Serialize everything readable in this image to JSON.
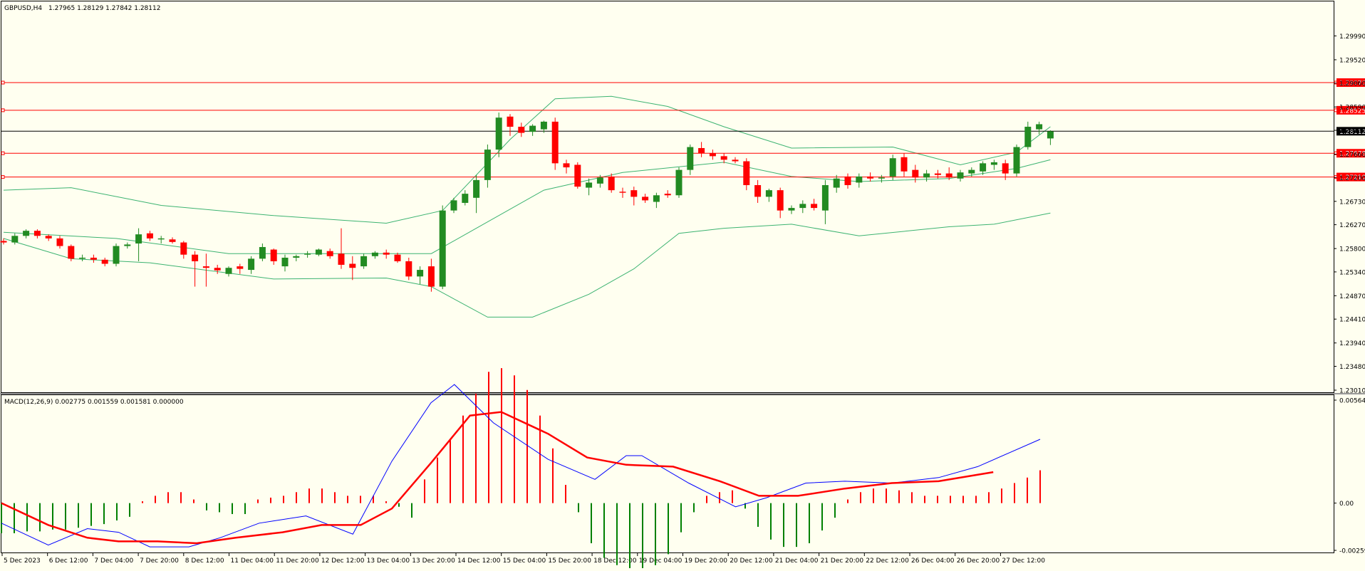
{
  "header": {
    "symbol_label": "GBPUSD,H4",
    "ohlc_values": "1.27965 1.28129 1.27842 1.28112"
  },
  "macd_header": {
    "label": "MACD(12,26,9) 0.002775 0.001559 0.001581 0.000000"
  },
  "colors": {
    "background": "#fffff0",
    "bull_candle": "#228b22",
    "bear_candle": "#ff0000",
    "bollinger": "#3cb371",
    "hline": "#ff0000",
    "bid_line": "#000000",
    "macd_line": "#0000ff",
    "signal_line": "#ff0000",
    "hist_positive": "#ff0000",
    "hist_negative": "#008000"
  },
  "chart_data": [
    {
      "type": "candlestick",
      "symbol": "GBPUSD",
      "timeframe": "H4",
      "ylim": [
        1.2301,
        1.30445
      ],
      "y_ticks": [
        "1.29990",
        "1.29520",
        "1.29060",
        "1.28590",
        "1.28130",
        "1.27660",
        "1.27200",
        "1.26730",
        "1.26270",
        "1.25800",
        "1.25340",
        "1.24870",
        "1.24410",
        "1.23940",
        "1.23480",
        "1.23010"
      ],
      "x_ticks": [
        "5 Dec 2023",
        "6 Dec 12:00",
        "7 Dec 04:00",
        "7 Dec 20:00",
        "8 Dec 12:00",
        "11 Dec 04:00",
        "11 Dec 20:00",
        "12 Dec 12:00",
        "13 Dec 04:00",
        "13 Dec 20:00",
        "14 Dec 12:00",
        "15 Dec 04:00",
        "15 Dec 20:00",
        "18 Dec 12:00",
        "19 Dec 04:00",
        "19 Dec 20:00",
        "20 Dec 12:00",
        "21 Dec 04:00",
        "21 Dec 20:00",
        "22 Dec 12:00",
        "26 Dec 04:00",
        "26 Dec 20:00",
        "27 Dec 12:00"
      ],
      "ohlc": [
        [
          1.2595,
          1.26,
          1.2588,
          1.2592
        ],
        [
          1.2592,
          1.261,
          1.2588,
          1.2605
        ],
        [
          1.2605,
          1.2618,
          1.26,
          1.2615
        ],
        [
          1.2615,
          1.2618,
          1.26,
          1.2605
        ],
        [
          1.2605,
          1.2608,
          1.2595,
          1.26
        ],
        [
          1.26,
          1.2605,
          1.258,
          1.2585
        ],
        [
          1.2585,
          1.2588,
          1.2555,
          1.256
        ],
        [
          1.256,
          1.2568,
          1.2555,
          1.2562
        ],
        [
          1.2562,
          1.2568,
          1.2552,
          1.2558
        ],
        [
          1.2558,
          1.2562,
          1.2545,
          1.255
        ],
        [
          1.255,
          1.259,
          1.2545,
          1.2585
        ],
        [
          1.2585,
          1.2592,
          1.258,
          1.2588
        ],
        [
          1.259,
          1.262,
          1.2555,
          1.2608
        ],
        [
          1.261,
          1.2615,
          1.2595,
          1.26
        ],
        [
          1.2598,
          1.2605,
          1.259,
          1.26
        ],
        [
          1.2598,
          1.2602,
          1.259,
          1.2593
        ],
        [
          1.2592,
          1.2595,
          1.256,
          1.2568
        ],
        [
          1.2568,
          1.2575,
          1.2505,
          1.2555
        ],
        [
          1.2545,
          1.257,
          1.2505,
          1.2542
        ],
        [
          1.2542,
          1.2548,
          1.253,
          1.2537
        ],
        [
          1.253,
          1.2545,
          1.2525,
          1.2542
        ],
        [
          1.2545,
          1.255,
          1.253,
          1.254
        ],
        [
          1.2538,
          1.2565,
          1.253,
          1.256
        ],
        [
          1.256,
          1.259,
          1.2555,
          1.2583
        ],
        [
          1.2578,
          1.258,
          1.2548,
          1.2555
        ],
        [
          1.2545,
          1.2568,
          1.2535,
          1.2562
        ],
        [
          1.2562,
          1.2568,
          1.2555,
          1.2565
        ],
        [
          1.2568,
          1.2575,
          1.2562,
          1.257
        ],
        [
          1.2568,
          1.258,
          1.2565,
          1.2578
        ],
        [
          1.2575,
          1.258,
          1.256,
          1.2565
        ],
        [
          1.257,
          1.262,
          1.254,
          1.2548
        ],
        [
          1.255,
          1.2565,
          1.2518,
          1.2542
        ],
        [
          1.2545,
          1.257,
          1.254,
          1.2565
        ],
        [
          1.2565,
          1.2575,
          1.256,
          1.2572
        ],
        [
          1.2572,
          1.2578,
          1.256,
          1.2568
        ],
        [
          1.2568,
          1.2572,
          1.2552,
          1.2555
        ],
        [
          1.2555,
          1.2562,
          1.2518,
          1.2525
        ],
        [
          1.2525,
          1.2545,
          1.251,
          1.2538
        ],
        [
          1.2545,
          1.256,
          1.2495,
          1.2505
        ],
        [
          1.2505,
          1.2665,
          1.25,
          1.2655
        ],
        [
          1.2655,
          1.268,
          1.265,
          1.2675
        ],
        [
          1.267,
          1.2695,
          1.2665,
          1.2688
        ],
        [
          1.268,
          1.2725,
          1.265,
          1.2715
        ],
        [
          1.2715,
          1.2785,
          1.27,
          1.2775
        ],
        [
          1.2775,
          1.2848,
          1.276,
          1.2838
        ],
        [
          1.284,
          1.2845,
          1.2802,
          1.282
        ],
        [
          1.282,
          1.2828,
          1.28,
          1.2808
        ],
        [
          1.281,
          1.2825,
          1.2802,
          1.2822
        ],
        [
          1.2815,
          1.2832,
          1.2808,
          1.283
        ],
        [
          1.283,
          1.2838,
          1.2735,
          1.2748
        ],
        [
          1.2748,
          1.2755,
          1.2728,
          1.274
        ],
        [
          1.2745,
          1.275,
          1.2698,
          1.2702
        ],
        [
          1.27,
          1.2718,
          1.2685,
          1.271
        ],
        [
          1.2708,
          1.2725,
          1.27,
          1.272
        ],
        [
          1.2722,
          1.2728,
          1.269,
          1.2695
        ],
        [
          1.2692,
          1.27,
          1.268,
          1.269
        ],
        [
          1.2695,
          1.2702,
          1.2665,
          1.2682
        ],
        [
          1.2682,
          1.2688,
          1.267,
          1.2675
        ],
        [
          1.2672,
          1.269,
          1.266,
          1.2685
        ],
        [
          1.2688,
          1.2695,
          1.268,
          1.2685
        ],
        [
          1.2685,
          1.274,
          1.268,
          1.2735
        ],
        [
          1.2735,
          1.2785,
          1.2725,
          1.278
        ],
        [
          1.2778,
          1.279,
          1.276,
          1.2768
        ],
        [
          1.2768,
          1.2775,
          1.2755,
          1.2762
        ],
        [
          1.2762,
          1.2768,
          1.2748,
          1.2755
        ],
        [
          1.2755,
          1.276,
          1.2748,
          1.2752
        ],
        [
          1.2752,
          1.2758,
          1.2695,
          1.2705
        ],
        [
          1.2705,
          1.2715,
          1.267,
          1.2682
        ],
        [
          1.2682,
          1.2698,
          1.2672,
          1.2695
        ],
        [
          1.2695,
          1.27,
          1.264,
          1.2655
        ],
        [
          1.2655,
          1.2665,
          1.2648,
          1.266
        ],
        [
          1.266,
          1.2675,
          1.265,
          1.2668
        ],
        [
          1.2668,
          1.2678,
          1.2655,
          1.266
        ],
        [
          1.2655,
          1.2715,
          1.2628,
          1.2705
        ],
        [
          1.27,
          1.2725,
          1.269,
          1.2718
        ],
        [
          1.2722,
          1.2728,
          1.2698,
          1.2705
        ],
        [
          1.271,
          1.2728,
          1.27,
          1.2722
        ],
        [
          1.2722,
          1.273,
          1.2712,
          1.2718
        ],
        [
          1.2718,
          1.2725,
          1.271,
          1.272
        ],
        [
          1.2722,
          1.2765,
          1.2715,
          1.2758
        ],
        [
          1.276,
          1.2768,
          1.2722,
          1.2732
        ],
        [
          1.2735,
          1.2745,
          1.271,
          1.272
        ],
        [
          1.272,
          1.2735,
          1.2712,
          1.2728
        ],
        [
          1.2728,
          1.2735,
          1.2718,
          1.2725
        ],
        [
          1.2728,
          1.274,
          1.2715,
          1.272
        ],
        [
          1.2718,
          1.2735,
          1.2712,
          1.273
        ],
        [
          1.2728,
          1.274,
          1.2722,
          1.2735
        ],
        [
          1.2732,
          1.2752,
          1.2725,
          1.2748
        ],
        [
          1.2745,
          1.2755,
          1.2735,
          1.275
        ],
        [
          1.2748,
          1.2755,
          1.2715,
          1.2728
        ],
        [
          1.2728,
          1.2785,
          1.2722,
          1.278
        ],
        [
          1.278,
          1.283,
          1.2775,
          1.282
        ],
        [
          1.2815,
          1.283,
          1.2805,
          1.2825
        ],
        [
          1.2797,
          1.2813,
          1.2784,
          1.2811
        ]
      ],
      "bb_upper": [
        [
          0,
          1.2695
        ],
        [
          6,
          1.27
        ],
        [
          14,
          1.2665
        ],
        [
          24,
          1.2645
        ],
        [
          34,
          1.263
        ],
        [
          39,
          1.2655
        ],
        [
          45,
          1.2795
        ],
        [
          49,
          1.2875
        ],
        [
          54,
          1.288
        ],
        [
          59,
          1.286
        ],
        [
          64,
          1.282
        ],
        [
          70,
          1.2778
        ],
        [
          79,
          1.278
        ],
        [
          85,
          1.2745
        ],
        [
          90,
          1.277
        ],
        [
          93,
          1.282
        ]
      ],
      "bb_middle": [
        [
          0,
          1.2612
        ],
        [
          10,
          1.26
        ],
        [
          20,
          1.257
        ],
        [
          38,
          1.257
        ],
        [
          42,
          1.262
        ],
        [
          48,
          1.2695
        ],
        [
          55,
          1.273
        ],
        [
          64,
          1.275
        ],
        [
          70,
          1.2722
        ],
        [
          76,
          1.2712
        ],
        [
          84,
          1.2718
        ],
        [
          90,
          1.2738
        ],
        [
          93,
          1.2755
        ]
      ],
      "bb_lower": [
        [
          0,
          1.26
        ],
        [
          6,
          1.256
        ],
        [
          13,
          1.2552
        ],
        [
          24,
          1.252
        ],
        [
          34,
          1.2522
        ],
        [
          38,
          1.2505
        ],
        [
          43,
          1.2445
        ],
        [
          47,
          1.2445
        ],
        [
          52,
          1.249
        ],
        [
          56,
          1.254
        ],
        [
          60,
          1.261
        ],
        [
          64,
          1.262
        ],
        [
          70,
          1.2628
        ],
        [
          76,
          1.2605
        ],
        [
          84,
          1.2623
        ],
        [
          88,
          1.2628
        ],
        [
          93,
          1.265
        ]
      ],
      "horizontal_lines": [
        {
          "price": 1.2907,
          "label": "1.29070"
        },
        {
          "price": 1.28525,
          "label": "1.28525"
        },
        {
          "price": 1.27678,
          "label": "1.27678"
        },
        {
          "price": 1.2721,
          "label": "1.27210"
        }
      ],
      "bid_line": {
        "price": 1.28112,
        "label": "1.28112"
      }
    },
    {
      "type": "macd",
      "params": "MACD(12,26,9)",
      "ylim": [
        -0.00259,
        0.005646
      ],
      "y_ticks": [
        "0.005646",
        "0.00",
        "-0.00259"
      ],
      "histogram": [
        -0.00165,
        -0.00165,
        -0.00155,
        -0.00155,
        -0.00145,
        -0.00145,
        -0.00135,
        -0.00125,
        -0.00115,
        -0.00095,
        -0.00075,
        0.0001,
        0.0004,
        0.0006,
        0.0006,
        0.0002,
        -0.0004,
        -0.0005,
        -0.0006,
        -0.0006,
        0.0002,
        0.0003,
        0.0004,
        0.0006,
        0.0008,
        0.0008,
        0.0006,
        0.0004,
        0.0004,
        0.0004,
        0.0001,
        -0.0002,
        -0.0008,
        0.0013,
        0.0025,
        0.0035,
        0.0048,
        0.006,
        0.0072,
        0.0074,
        0.007,
        0.0062,
        0.0048,
        0.003,
        0.001,
        -0.0005,
        -0.0022,
        -0.003,
        -0.0034,
        -0.0036,
        -0.0036,
        -0.0034,
        -0.0028,
        -0.0016,
        -0.0005,
        0.0004,
        0.0006,
        0.0007,
        -0.0003,
        -0.0013,
        -0.002,
        -0.0024,
        -0.0024,
        -0.0022,
        -0.0015,
        -0.0008,
        0.0002,
        0.0006,
        0.0008,
        0.0008,
        0.0007,
        0.0006,
        0.0004,
        0.0004,
        0.0004,
        0.0004,
        0.0004,
        0.0006,
        0.0008,
        0.0011,
        0.0014,
        0.0018
      ],
      "macd_line": [
        [
          0,
          -0.0011
        ],
        [
          6,
          -0.0023
        ],
        [
          11,
          -0.0014
        ],
        [
          15,
          -0.0016
        ],
        [
          19,
          -0.0024
        ],
        [
          24,
          -0.0024
        ],
        [
          28,
          -0.0019
        ],
        [
          33,
          -0.0011
        ],
        [
          39,
          -0.0007
        ],
        [
          45,
          -0.0017
        ],
        [
          50,
          0.0023
        ],
        [
          55,
          0.0055
        ],
        [
          58,
          0.0065
        ],
        [
          63,
          0.0044
        ],
        [
          70,
          0.0024
        ],
        [
          76,
          0.0013
        ],
        [
          80,
          0.0026
        ],
        [
          82,
          0.0026
        ],
        [
          88,
          0.0011
        ],
        [
          94,
          -0.0002
        ],
        [
          98,
          0.0003
        ],
        [
          103,
          0.0011
        ],
        [
          108,
          0.0012
        ],
        [
          114,
          0.0011
        ],
        [
          120,
          0.0014
        ],
        [
          125,
          0.002
        ],
        [
          133,
          0.0035
        ]
      ],
      "signal_line": [
        [
          0,
          0.0
        ],
        [
          6,
          -0.0012
        ],
        [
          11,
          -0.0019
        ],
        [
          15,
          -0.0021
        ],
        [
          20,
          -0.0021
        ],
        [
          25,
          -0.0022
        ],
        [
          30,
          -0.0019
        ],
        [
          36,
          -0.0016
        ],
        [
          41,
          -0.0012
        ],
        [
          46,
          -0.0012
        ],
        [
          50,
          -0.0003
        ],
        [
          55,
          0.0022
        ],
        [
          60,
          0.0048
        ],
        [
          64,
          0.005
        ],
        [
          70,
          0.0038
        ],
        [
          75,
          0.0025
        ],
        [
          80,
          0.0021
        ],
        [
          86,
          0.002
        ],
        [
          92,
          0.0012
        ],
        [
          97,
          0.0004
        ],
        [
          102,
          0.0004
        ],
        [
          108,
          0.0008
        ],
        [
          114,
          0.0011
        ],
        [
          120,
          0.0012
        ],
        [
          127,
          0.0017
        ]
      ],
      "macd_x_scale_note": "",
      "xlim": [
        0,
        133
      ]
    }
  ]
}
